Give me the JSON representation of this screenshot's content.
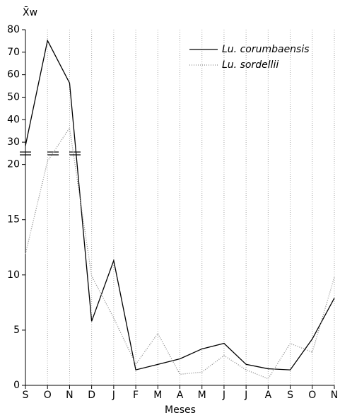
{
  "chart_data": {
    "type": "line",
    "ylabel": "X̄w",
    "xlabel": "Meses",
    "categories": [
      "S",
      "O",
      "N",
      "D",
      "J",
      "F",
      "M",
      "A",
      "M",
      "J",
      "J",
      "A",
      "S",
      "O",
      "N"
    ],
    "series": [
      {
        "name": "Lu. corumbaensis",
        "color": "#000000",
        "dash": "solid",
        "values": [
          28.4,
          75.2,
          56.3,
          5.8,
          11.3,
          1.4,
          1.9,
          2.4,
          3.3,
          3.8,
          1.9,
          1.5,
          1.4,
          4.2,
          7.9
        ]
      },
      {
        "name": "Lu. sordellii",
        "color": "#888888",
        "dash": "dotted",
        "values": [
          11.9,
          20.3,
          36.3,
          9.9,
          6.1,
          1.9,
          4.7,
          1.0,
          1.2,
          2.7,
          1.4,
          0.6,
          3.8,
          3.0,
          9.8
        ]
      }
    ],
    "ylim": [
      0,
      80
    ],
    "ybreak": [
      21,
      25
    ],
    "yticks": [
      0,
      5,
      10,
      15,
      20,
      30,
      40,
      50,
      60,
      70,
      80
    ],
    "grid": true,
    "legend": "upper right"
  }
}
